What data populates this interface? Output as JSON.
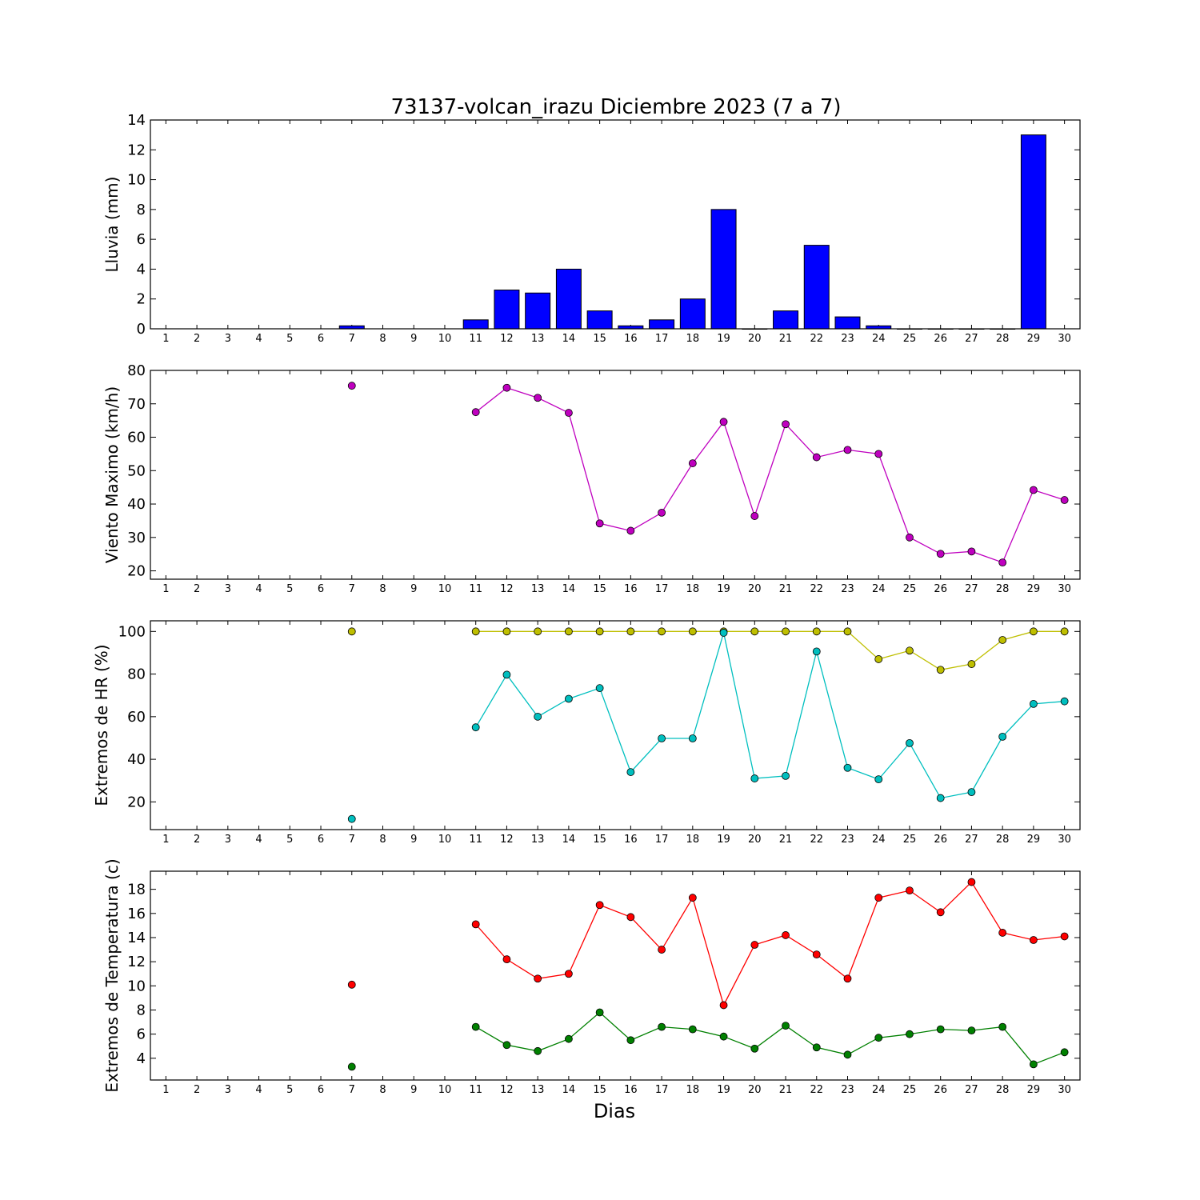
{
  "title": "73137-volcan_irazu Diciembre 2023  (7 a 7)",
  "xlabel": "Dias",
  "chart_data": [
    {
      "type": "bar",
      "ylabel": "Lluvia (mm)",
      "ylim": [
        0,
        14
      ],
      "yticks": [
        0,
        2,
        4,
        6,
        8,
        10,
        12,
        14
      ],
      "x": [
        1,
        2,
        3,
        4,
        5,
        6,
        7,
        8,
        9,
        10,
        11,
        12,
        13,
        14,
        15,
        16,
        17,
        18,
        19,
        20,
        21,
        22,
        23,
        24,
        25,
        26,
        27,
        28,
        29,
        30
      ],
      "series": [
        {
          "color": "#0000ff",
          "values": [
            null,
            null,
            null,
            null,
            null,
            null,
            0.2,
            null,
            null,
            null,
            0.6,
            2.6,
            2.4,
            4.0,
            1.2,
            0.2,
            0.6,
            2.0,
            8.0,
            0.0,
            1.2,
            5.6,
            0.8,
            0.2,
            0.0,
            0.0,
            0.0,
            0.0,
            13.0,
            null
          ]
        }
      ]
    },
    {
      "type": "line",
      "ylabel": "Viento Maximo (km/h)",
      "ylim": [
        17.5,
        80
      ],
      "yticks": [
        20,
        30,
        40,
        50,
        60,
        70,
        80
      ],
      "x": [
        1,
        2,
        3,
        4,
        5,
        6,
        7,
        8,
        9,
        10,
        11,
        12,
        13,
        14,
        15,
        16,
        17,
        18,
        19,
        20,
        21,
        22,
        23,
        24,
        25,
        26,
        27,
        28,
        29,
        30
      ],
      "series": [
        {
          "color": "#bf00bf",
          "values": [
            null,
            null,
            null,
            null,
            null,
            null,
            75.4,
            null,
            null,
            null,
            67.5,
            74.8,
            71.8,
            67.3,
            34.2,
            32.0,
            37.4,
            52.2,
            64.6,
            36.4,
            63.9,
            54.0,
            56.2,
            55.0,
            30.0,
            25.1,
            25.8,
            22.5,
            44.2,
            41.2
          ]
        }
      ]
    },
    {
      "type": "line",
      "ylabel": "Extremos de HR (%)",
      "ylim": [
        7,
        105
      ],
      "yticks": [
        20,
        40,
        60,
        80,
        100
      ],
      "x": [
        1,
        2,
        3,
        4,
        5,
        6,
        7,
        8,
        9,
        10,
        11,
        12,
        13,
        14,
        15,
        16,
        17,
        18,
        19,
        20,
        21,
        22,
        23,
        24,
        25,
        26,
        27,
        28,
        29,
        30
      ],
      "series": [
        {
          "color": "#bfbf00",
          "values": [
            null,
            null,
            null,
            null,
            null,
            null,
            100,
            null,
            null,
            null,
            100,
            100,
            100,
            100,
            100,
            100,
            100,
            100,
            100,
            100,
            100,
            100,
            100,
            87,
            91,
            82,
            84.7,
            96,
            100,
            100
          ]
        },
        {
          "color": "#00bfbf",
          "values": [
            null,
            null,
            null,
            null,
            null,
            null,
            12,
            null,
            null,
            null,
            55,
            79.7,
            60,
            68.4,
            73.4,
            34,
            49.8,
            49.8,
            99.4,
            31,
            32.2,
            90.6,
            36,
            30.6,
            47.6,
            21.8,
            24.6,
            50.6,
            66,
            67.2
          ]
        }
      ]
    },
    {
      "type": "line",
      "ylabel": "Extremos de Temperatura (c)",
      "ylim": [
        2.2,
        19.5
      ],
      "yticks": [
        4,
        6,
        8,
        10,
        12,
        14,
        16,
        18
      ],
      "x": [
        1,
        2,
        3,
        4,
        5,
        6,
        7,
        8,
        9,
        10,
        11,
        12,
        13,
        14,
        15,
        16,
        17,
        18,
        19,
        20,
        21,
        22,
        23,
        24,
        25,
        26,
        27,
        28,
        29,
        30
      ],
      "series": [
        {
          "color": "#ff0000",
          "values": [
            null,
            null,
            null,
            null,
            null,
            null,
            10.1,
            null,
            null,
            null,
            15.1,
            12.2,
            10.6,
            11.0,
            16.7,
            15.7,
            13.0,
            17.3,
            8.4,
            13.4,
            14.2,
            12.6,
            10.6,
            17.3,
            17.9,
            16.1,
            18.6,
            14.4,
            13.8,
            14.1
          ]
        },
        {
          "color": "#008000",
          "values": [
            null,
            null,
            null,
            null,
            null,
            null,
            3.3,
            null,
            null,
            null,
            6.6,
            5.1,
            4.6,
            5.6,
            7.8,
            5.5,
            6.6,
            6.4,
            5.8,
            4.8,
            6.7,
            4.9,
            4.3,
            5.7,
            6.0,
            6.4,
            6.3,
            6.6,
            3.5,
            4.5
          ]
        }
      ]
    }
  ]
}
